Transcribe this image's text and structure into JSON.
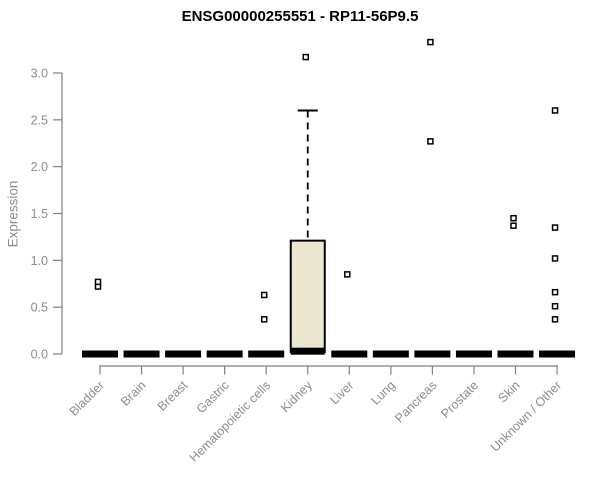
{
  "title": "ENSG00000255551 - RP11-56P9.5",
  "chart_data": {
    "type": "boxplot",
    "title": "ENSG00000255551 - RP11-56P9.5",
    "xlabel": "",
    "ylabel": "Expression",
    "ylim": [
      0,
      3.55
    ],
    "yticks": [
      "0.0",
      "0.5",
      "1.0",
      "1.5",
      "2.0",
      "2.5",
      "3.0"
    ],
    "grid": false,
    "legend": "none",
    "categories": [
      "Bladder",
      "Brain",
      "Breast",
      "Gastric",
      "Hematopoietic cells",
      "Kidney",
      "Liver",
      "Lung",
      "Pancreas",
      "Prostate",
      "Skin",
      "Unknown / Other"
    ],
    "boxes": [
      {
        "category": "Bladder",
        "whisker_low": 0,
        "q1": 0,
        "median": 0,
        "q3": 0,
        "whisker_high": 0,
        "outliers": [
          0.72,
          0.77
        ]
      },
      {
        "category": "Brain",
        "whisker_low": 0,
        "q1": 0,
        "median": 0,
        "q3": 0,
        "whisker_high": 0,
        "outliers": []
      },
      {
        "category": "Breast",
        "whisker_low": 0,
        "q1": 0,
        "median": 0,
        "q3": 0,
        "whisker_high": 0,
        "outliers": []
      },
      {
        "category": "Gastric",
        "whisker_low": 0,
        "q1": 0,
        "median": 0,
        "q3": 0,
        "whisker_high": 0,
        "outliers": []
      },
      {
        "category": "Hematopoietic cells",
        "whisker_low": 0,
        "q1": 0,
        "median": 0,
        "q3": 0,
        "whisker_high": 0,
        "outliers": [
          0.37,
          0.63
        ]
      },
      {
        "category": "Kidney",
        "whisker_low": 0,
        "q1": 0.02,
        "median": 0.03,
        "q3": 1.21,
        "whisker_high": 2.6,
        "outliers": [
          3.17
        ]
      },
      {
        "category": "Liver",
        "whisker_low": 0,
        "q1": 0,
        "median": 0,
        "q3": 0,
        "whisker_high": 0,
        "outliers": [
          0.85
        ]
      },
      {
        "category": "Lung",
        "whisker_low": 0,
        "q1": 0,
        "median": 0,
        "q3": 0,
        "whisker_high": 0,
        "outliers": []
      },
      {
        "category": "Pancreas",
        "whisker_low": 0,
        "q1": 0,
        "median": 0,
        "q3": 0,
        "whisker_high": 0,
        "outliers": [
          2.27,
          3.33
        ]
      },
      {
        "category": "Prostate",
        "whisker_low": 0,
        "q1": 0,
        "median": 0,
        "q3": 0,
        "whisker_high": 0,
        "outliers": []
      },
      {
        "category": "Skin",
        "whisker_low": 0,
        "q1": 0,
        "median": 0,
        "q3": 0,
        "whisker_high": 0,
        "outliers": [
          1.37,
          1.45
        ]
      },
      {
        "category": "Unknown / Other",
        "whisker_low": 0,
        "q1": 0,
        "median": 0,
        "q3": 0,
        "whisker_high": 0,
        "outliers": [
          0.37,
          0.51,
          0.66,
          1.02,
          1.35,
          2.6
        ]
      }
    ],
    "colors": {
      "box_fill": "#ece7cf",
      "box_border": "#000000",
      "median": "#000000",
      "outlier_stroke": "#000000",
      "outlier_fill": "#ffffff",
      "axis": "#808080",
      "tick_text": "#8c8c8c",
      "title_text": "#000000",
      "background": "#ffffff"
    }
  }
}
